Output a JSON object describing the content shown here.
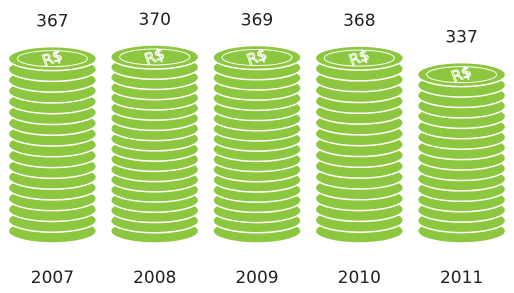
{
  "chart_data": {
    "type": "coin-stack",
    "categories": [
      "2007",
      "2008",
      "2009",
      "2010",
      "2011"
    ],
    "values": [
      367,
      370,
      369,
      368,
      337
    ],
    "color": "#8dc63f",
    "coin_symbol": "R$"
  }
}
